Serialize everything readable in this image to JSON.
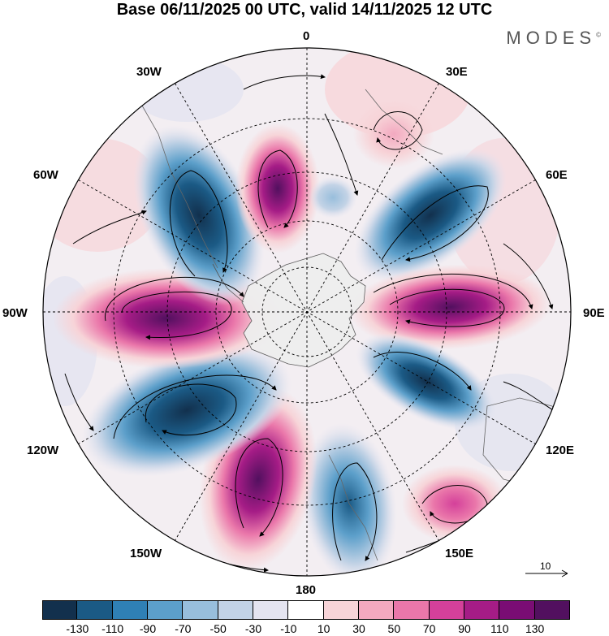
{
  "title": "Base 06/11/2025 00 UTC, valid 14/11/2025 12 UTC",
  "brand": "MODES",
  "brand_mark": "©",
  "longitude_labels": {
    "lon_0": "0",
    "lon_30e": "30E",
    "lon_60e": "60E",
    "lon_90e": "90E",
    "lon_120e": "120E",
    "lon_150e": "150E",
    "lon_180": "180",
    "lon_150w": "150W",
    "lon_120w": "120W",
    "lon_90w": "90W",
    "lon_60w": "60W",
    "lon_30w": "30W"
  },
  "reference_vector": {
    "label": "10",
    "magnitude": 10
  },
  "colorbar": {
    "ticks": [
      "-130",
      "-110",
      "-90",
      "-70",
      "-50",
      "-30",
      "-10",
      "10",
      "30",
      "50",
      "70",
      "90",
      "110",
      "130"
    ],
    "colors": [
      "#12304d",
      "#1b5a85",
      "#2f80b5",
      "#5c9fca",
      "#98bedc",
      "#c3d3e6",
      "#e4e4f0",
      "#ffffff",
      "#f7d4d8",
      "#f3a9c0",
      "#ea77aa",
      "#d4409a",
      "#a51c86",
      "#7a0d74",
      "#52105f"
    ]
  },
  "map_features": {
    "projection": "polar stereographic (south pole)",
    "anomaly_centers": [
      {
        "lon": 30,
        "lat": -50,
        "value": 45
      },
      {
        "lon": 70,
        "lat": -53,
        "value": -110
      },
      {
        "lon": 100,
        "lat": -57,
        "value": 120
      },
      {
        "lon": 125,
        "lat": -62,
        "value": -120
      },
      {
        "lon": 150,
        "lat": -35,
        "value": 55
      },
      {
        "lon": 175,
        "lat": -42,
        "value": -85
      },
      {
        "lon": -150,
        "lat": -47,
        "value": 115
      },
      {
        "lon": -120,
        "lat": -47,
        "value": -125
      },
      {
        "lon": -90,
        "lat": -47,
        "value": 140
      },
      {
        "lon": -40,
        "lat": -55,
        "value": -115
      },
      {
        "lon": -5,
        "lat": -50,
        "value": 85
      },
      {
        "lon": 20,
        "lat": -63,
        "value": -30
      }
    ]
  }
}
